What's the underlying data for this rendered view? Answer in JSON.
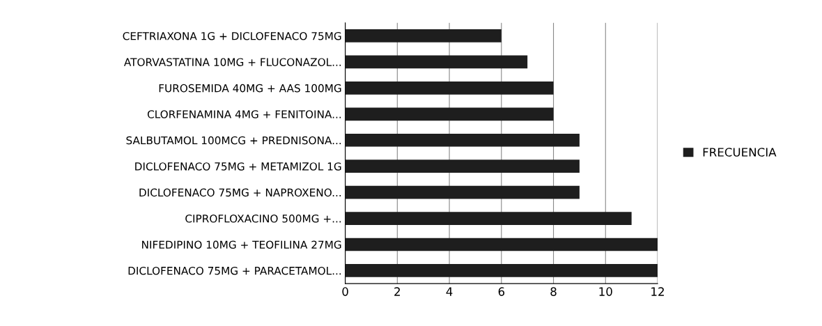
{
  "chart_data": {
    "type": "bar",
    "orientation": "horizontal",
    "categories": [
      "CEFTRIAXONA 1G + DICLOFENACO 75MG",
      "ATORVASTATINA 10MG + FLUCONAZOL...",
      "FUROSEMIDA 40MG + AAS 100MG",
      "CLORFENAMINA 4MG + FENITOINA...",
      "SALBUTAMOL 100MCG + PREDNISONA...",
      "DICLOFENACO 75MG + METAMIZOL 1G",
      "DICLOFENACO 75MG + NAPROXENO...",
      "CIPROFLOXACINO 500MG +...",
      "NIFEDIPINO 10MG + TEOFILINA 27MG",
      "DICLOFENACO 75MG + PARACETAMOL..."
    ],
    "series": [
      {
        "name": "FRECUENCIA",
        "color": "#1e1e1e",
        "values": [
          6,
          7,
          8,
          8,
          9,
          9,
          9,
          11,
          12,
          12
        ]
      }
    ],
    "xlim": [
      0,
      12
    ],
    "xticks": [
      0,
      2,
      4,
      6,
      8,
      10,
      12
    ],
    "grid": "x",
    "legend": "right"
  }
}
